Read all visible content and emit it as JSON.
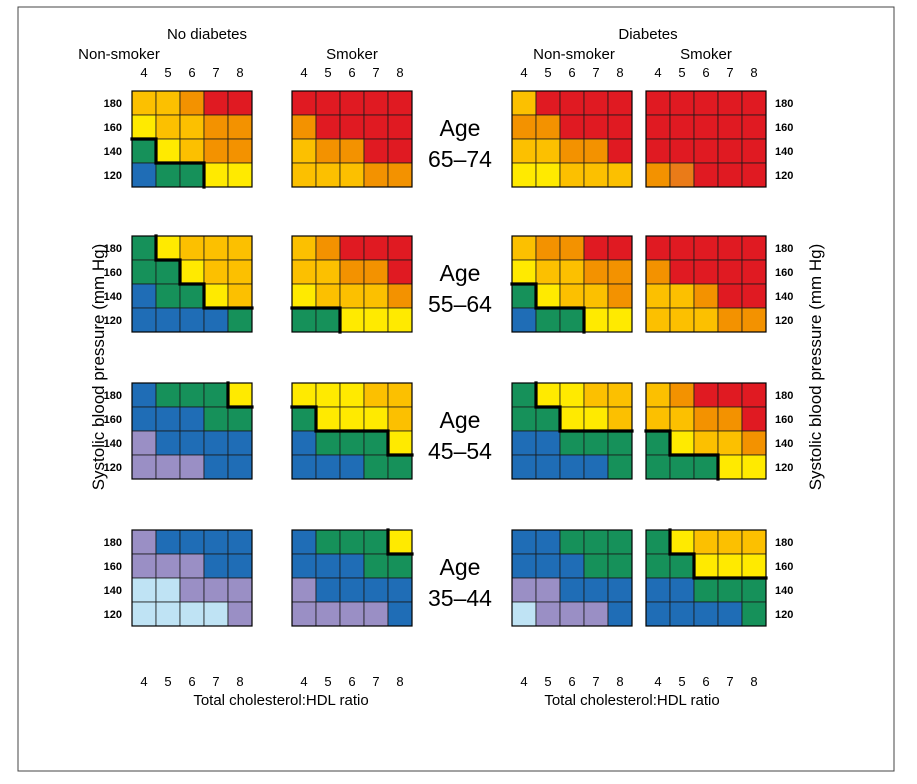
{
  "chart_data": {
    "type": "heatmap",
    "x_label": "Total cholesterol:HDL ratio",
    "y_label": "Systolic blood pressure (mm Hg)",
    "x_ticks": [
      "4",
      "5",
      "6",
      "7",
      "8"
    ],
    "y_ticks": [
      "180",
      "160",
      "140",
      "120"
    ],
    "group_labels": [
      "No diabetes",
      "Diabetes"
    ],
    "subgroup_labels": [
      "Non-smoker",
      "Smoker"
    ],
    "age_bands": [
      {
        "line1": "Age",
        "line2": "65–74"
      },
      {
        "line1": "Age",
        "line2": "55–64"
      },
      {
        "line1": "Age",
        "line2": "45–54"
      },
      {
        "line1": "Age",
        "line2": "35–44"
      }
    ],
    "colors": {
      "lb": "#bfe3f4",
      "pu": "#9a8fc5",
      "bl": "#1f6db6",
      "gr": "#16915a",
      "ye": "#ffea00",
      "yo": "#fcc000",
      "or": "#f39200",
      "oo": "#ea7b18",
      "re": "#e01a22"
    },
    "rows_order": "each panel lists rows top-to-bottom (BP 180,160,140,120) and columns left-to-right (ratio 4..8)",
    "panels": [
      [
        [
          "yo yo or re re",
          "ye yo yo or or",
          "gr ye yo or or",
          "bl gr gr ye ye"
        ],
        [
          "re re re re re",
          "or re re re re",
          "yo or or re re",
          "yo yo yo or or"
        ],
        [
          "yo re re re re",
          "or or re re re",
          "yo yo or or re",
          "ye ye yo yo yo"
        ],
        [
          "re re re re re",
          "re re re re re",
          "re re re re re",
          "or oo re re re"
        ]
      ],
      [
        [
          "gr ye yo yo yo",
          "gr gr ye yo yo",
          "bl gr gr ye yo",
          "bl bl bl bl gr"
        ],
        [
          "yo or re re re",
          "yo yo or or re",
          "ye yo yo yo or",
          "gr gr ye ye ye"
        ],
        [
          "yo or or re re",
          "ye yo yo or or",
          "gr ye yo yo or",
          "bl gr gr ye ye"
        ],
        [
          "re re re re re",
          "or re re re re",
          "yo yo or re re",
          "yo yo yo or or"
        ]
      ],
      [
        [
          "bl gr gr gr ye",
          "bl bl bl gr gr",
          "pu bl bl bl bl",
          "pu pu pu bl bl"
        ],
        [
          "ye ye ye yo yo",
          "gr ye ye ye yo",
          "bl gr gr gr ye",
          "bl bl bl gr gr"
        ],
        [
          "gr ye ye yo yo",
          "gr gr ye ye yo",
          "bl bl gr gr gr",
          "bl bl bl bl gr"
        ],
        [
          "yo or re re re",
          "yo yo or or re",
          "gr ye yo yo or",
          "gr gr gr ye ye"
        ]
      ],
      [
        [
          "pu bl bl bl bl",
          "pu pu pu bl bl",
          "lb lb pu pu pu",
          "lb lb lb lb pu"
        ],
        [
          "bl gr gr gr ye",
          "bl bl bl gr gr",
          "pu bl bl bl bl",
          "pu pu pu pu bl"
        ],
        [
          "bl bl gr gr gr",
          "bl bl bl gr gr",
          "pu pu bl bl bl",
          "lb pu pu pu bl"
        ],
        [
          "gr ye yo yo yo",
          "gr gr ye ye ye",
          "bl bl gr gr gr",
          "bl bl bl bl gr"
        ]
      ]
    ]
  }
}
